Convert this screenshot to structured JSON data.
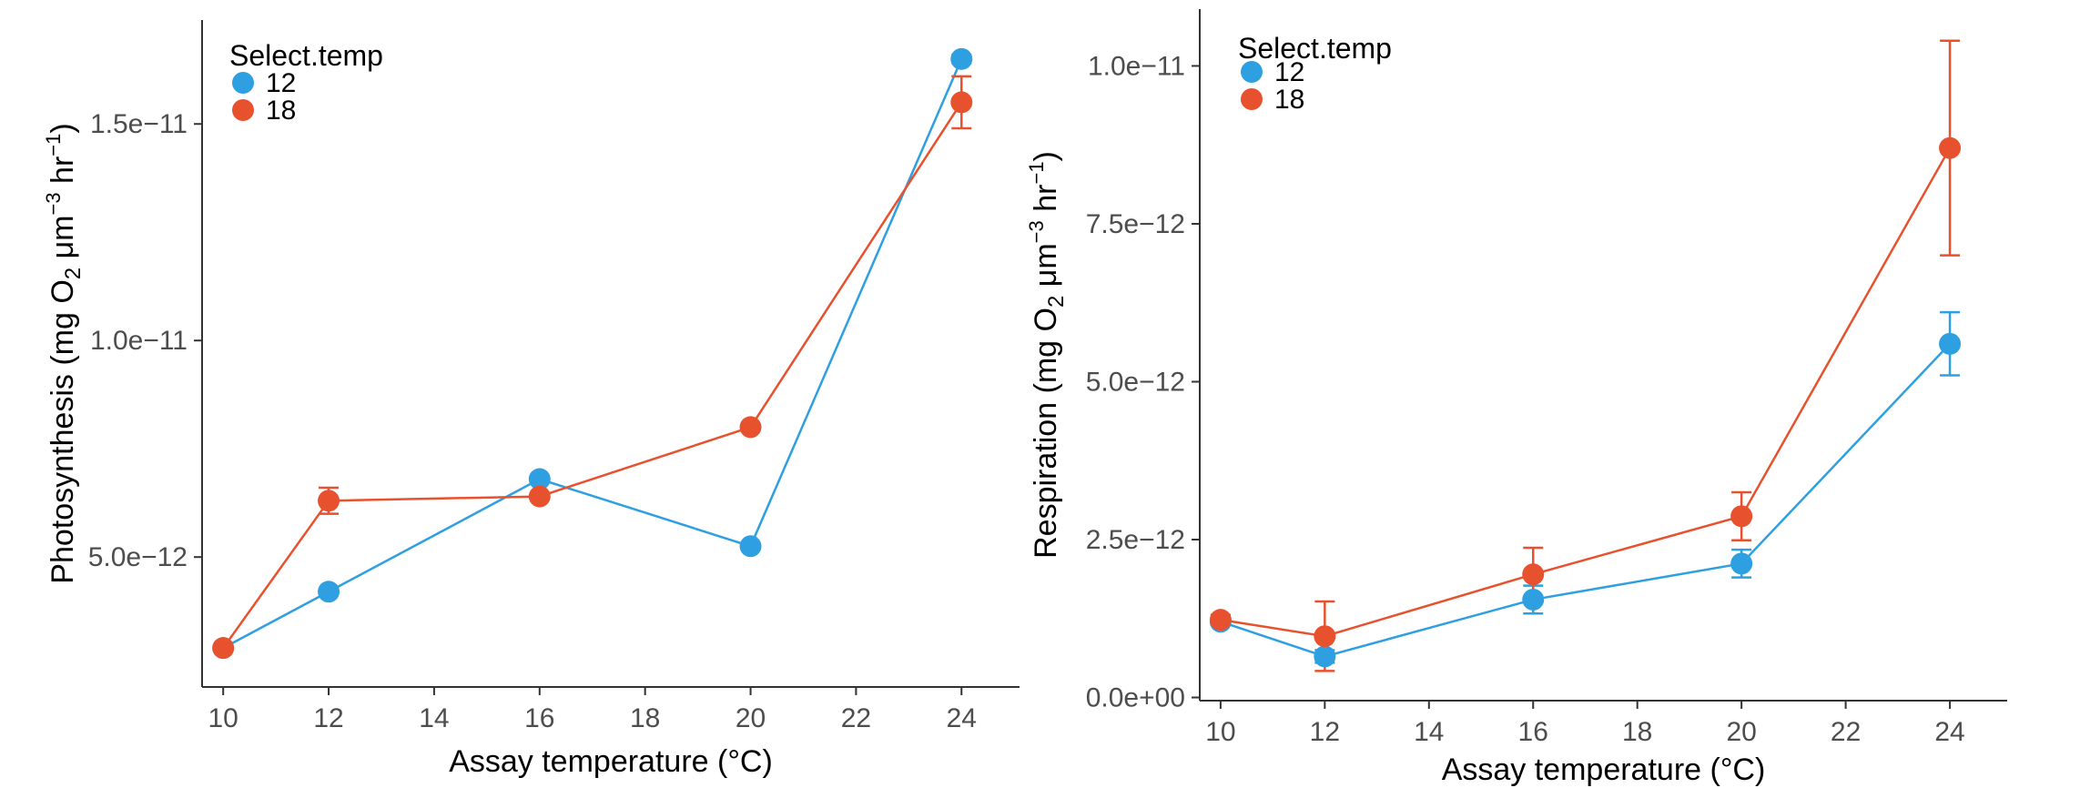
{
  "colors": {
    "series_12": "#2E9FE0",
    "series_18": "#E8512D",
    "axis": "#333333",
    "tick_text": "#4d4d4d"
  },
  "chart_data": [
    {
      "type": "line",
      "title": "",
      "xlabel": "Assay temperature (°C)",
      "ylabel_main": "Photosynthesis (mg O",
      "ylabel_sub": "2",
      "ylabel_unit1": " μm",
      "ylabel_sup1": "−3",
      "ylabel_unit2": " hr",
      "ylabel_sup2": "−1",
      "ylabel_close": ")",
      "xlim": [
        9.6,
        25.1
      ],
      "ylim": [
        2e-12,
        1.74e-11
      ],
      "x_ticks": [
        10,
        12,
        14,
        16,
        18,
        20,
        22,
        24
      ],
      "x_tick_labels": [
        "10",
        "12",
        "14",
        "16",
        "18",
        "20",
        "22",
        "24"
      ],
      "y_ticks": [
        5e-12,
        1e-11,
        1.5e-11
      ],
      "y_tick_labels": [
        "5.0e−12",
        "1.0e−11",
        "1.5e−11"
      ],
      "legend": {
        "title": "Select.temp",
        "position": "top-left"
      },
      "series": [
        {
          "name": "12",
          "color": "#2E9FE0",
          "x": [
            10,
            12,
            16,
            20,
            24
          ],
          "y": [
            2.9e-12,
            4.2e-12,
            6.8e-12,
            5.25e-12,
            1.65e-11
          ],
          "err": [
            0,
            0,
            0,
            0,
            1e-13
          ]
        },
        {
          "name": "18",
          "color": "#E8512D",
          "x": [
            10,
            12,
            16,
            20,
            24
          ],
          "y": [
            2.9e-12,
            6.3e-12,
            6.4e-12,
            8e-12,
            1.55e-11
          ],
          "err": [
            0,
            3e-13,
            0,
            0,
            6e-13
          ]
        }
      ]
    },
    {
      "type": "line",
      "title": "",
      "xlabel": "Assay temperature (°C)",
      "ylabel_main": "Respiration (mg O",
      "ylabel_sub": "2",
      "ylabel_unit1": " μm",
      "ylabel_sup1": "−3",
      "ylabel_unit2": " hr",
      "ylabel_sup2": "−1",
      "ylabel_close": ")",
      "xlim": [
        9.6,
        25.1
      ],
      "ylim": [
        -5e-14,
        1.09e-11
      ],
      "x_ticks": [
        10,
        12,
        14,
        16,
        18,
        20,
        22,
        24
      ],
      "x_tick_labels": [
        "10",
        "12",
        "14",
        "16",
        "18",
        "20",
        "22",
        "24"
      ],
      "y_ticks": [
        0,
        2.5e-12,
        5e-12,
        7.5e-12,
        1e-11
      ],
      "y_tick_labels": [
        "0.0e+00",
        "2.5e−12",
        "5.0e−12",
        "7.5e−12",
        "1.0e−11"
      ],
      "legend": {
        "title": "Select.temp",
        "position": "top-left"
      },
      "series": [
        {
          "name": "12",
          "color": "#2E9FE0",
          "x": [
            10,
            12,
            16,
            20,
            24
          ],
          "y": [
            1.2e-12,
            6.5e-13,
            1.55e-12,
            2.12e-12,
            5.6e-12
          ],
          "err": [
            5e-14,
            1e-13,
            2.2e-13,
            2.2e-13,
            5e-13
          ]
        },
        {
          "name": "18",
          "color": "#E8512D",
          "x": [
            10,
            12,
            16,
            20,
            24
          ],
          "y": [
            1.23e-12,
            9.7e-13,
            1.95e-12,
            2.87e-12,
            8.7e-12
          ],
          "err": [
            8e-14,
            5.5e-13,
            4.2e-13,
            3.8e-13,
            1.7e-12
          ]
        }
      ]
    }
  ]
}
